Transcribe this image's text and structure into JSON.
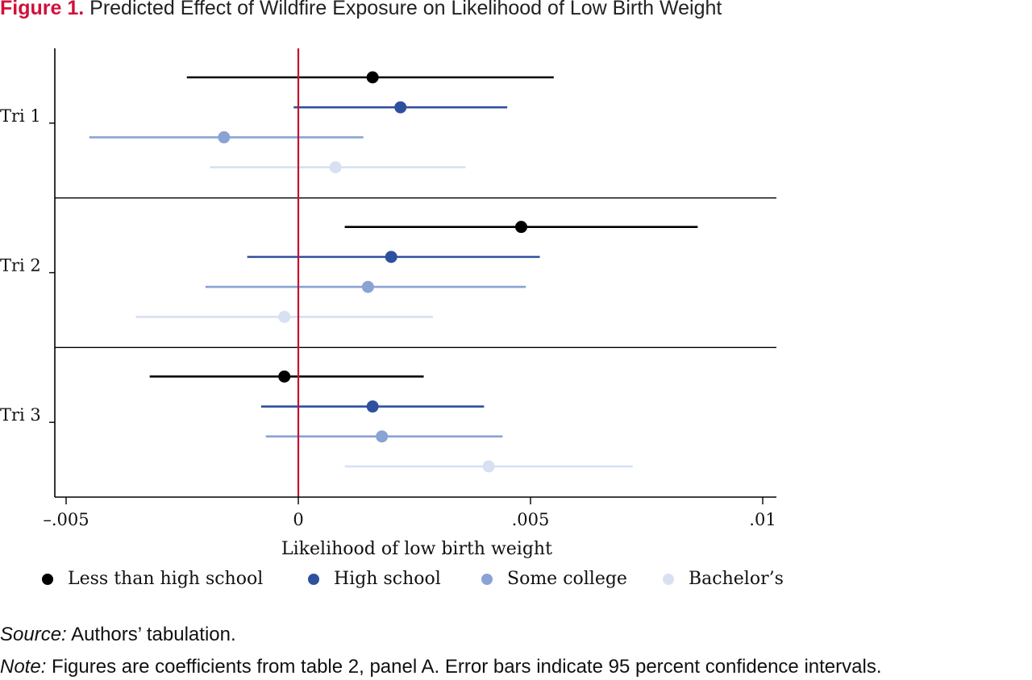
{
  "figure": {
    "label": "Figure 1.",
    "title": "Predicted Effect of Wildfire Exposure on Likelihood of Low Birth Weight"
  },
  "footer": {
    "source_label": "Source:",
    "source_text": "Authors’ tabulation.",
    "note_label": "Note:",
    "note_text": "Figures are coefficients from table 2, panel A. Error bars indicate 95 percent confidence intervals."
  },
  "colors": {
    "zero_line": "#c8102e",
    "less_than_high_school": "#000000",
    "high_school": "#2f4f9f",
    "some_college": "#8aa2d4",
    "bachelors": "#d7e1f1"
  },
  "chart_data": {
    "type": "scatter",
    "subtype": "coefficient-plot-with-95-percent-ci",
    "xlabel": "Likelihood of low birth weight",
    "xlim": [
      -0.0052,
      0.0103
    ],
    "x_ticks": [
      -0.005,
      0,
      0.005,
      0.01
    ],
    "x_tick_labels": [
      "–.005",
      "0",
      ".005",
      ".01"
    ],
    "reference_line_x": 0,
    "groups": [
      "Tri 1",
      "Tri 2",
      "Tri 3"
    ],
    "legend_position": "bottom",
    "grid": false,
    "series": [
      {
        "name": "Less than high school",
        "color": "#000000",
        "points": [
          {
            "group": "Tri 1",
            "estimate": 0.0016,
            "ci_low": -0.0024,
            "ci_high": 0.0055
          },
          {
            "group": "Tri 2",
            "estimate": 0.0048,
            "ci_low": 0.001,
            "ci_high": 0.0086
          },
          {
            "group": "Tri 3",
            "estimate": -0.0003,
            "ci_low": -0.0032,
            "ci_high": 0.0027
          }
        ]
      },
      {
        "name": "High school",
        "color": "#2f4f9f",
        "points": [
          {
            "group": "Tri 1",
            "estimate": 0.0022,
            "ci_low": -0.0001,
            "ci_high": 0.0045
          },
          {
            "group": "Tri 2",
            "estimate": 0.002,
            "ci_low": -0.0011,
            "ci_high": 0.0052
          },
          {
            "group": "Tri 3",
            "estimate": 0.0016,
            "ci_low": -0.0008,
            "ci_high": 0.004
          }
        ]
      },
      {
        "name": "Some college",
        "color": "#8aa2d4",
        "points": [
          {
            "group": "Tri 1",
            "estimate": -0.0016,
            "ci_low": -0.0045,
            "ci_high": 0.0014
          },
          {
            "group": "Tri 2",
            "estimate": 0.0015,
            "ci_low": -0.002,
            "ci_high": 0.0049
          },
          {
            "group": "Tri 3",
            "estimate": 0.0018,
            "ci_low": -0.0007,
            "ci_high": 0.0044
          }
        ]
      },
      {
        "name": "Bachelor’s",
        "color": "#d7e1f1",
        "points": [
          {
            "group": "Tri 1",
            "estimate": 0.0008,
            "ci_low": -0.0019,
            "ci_high": 0.0036
          },
          {
            "group": "Tri 2",
            "estimate": -0.0003,
            "ci_low": -0.0035,
            "ci_high": 0.0029
          },
          {
            "group": "Tri 3",
            "estimate": 0.0041,
            "ci_low": 0.001,
            "ci_high": 0.0072
          }
        ]
      }
    ]
  }
}
